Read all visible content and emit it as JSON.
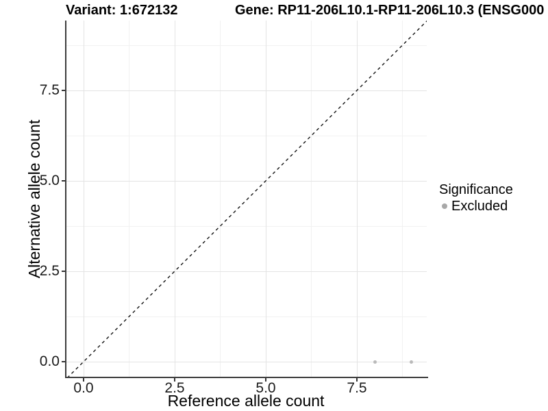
{
  "titles": {
    "variant": "Variant: 1:672132",
    "gene": "Gene: RP11-206L10.1-RP11-206L10.3 (ENSG000"
  },
  "axes": {
    "x": {
      "title": "Reference allele count"
    },
    "y": {
      "title": "Alternative allele count"
    }
  },
  "legend": {
    "title": "Significance",
    "items": [
      {
        "label": "Excluded",
        "color": "#a8a8a8"
      }
    ]
  },
  "chart_data": {
    "type": "scatter",
    "title_left": "Variant: 1:672132",
    "title_right": "Gene: RP11-206L10.1-RP11-206L10.3 (ENSG000",
    "xlabel": "Reference allele count",
    "ylabel": "Alternative allele count",
    "xlim": [
      -0.45,
      9.45
    ],
    "ylim": [
      -0.45,
      9.45
    ],
    "x_ticks": [
      {
        "v": 0,
        "label": "0.0"
      },
      {
        "v": 2.5,
        "label": "2.5"
      },
      {
        "v": 5,
        "label": "5.0"
      },
      {
        "v": 7.5,
        "label": "7.5"
      }
    ],
    "y_ticks": [
      {
        "v": 0,
        "label": "0.0"
      },
      {
        "v": 2.5,
        "label": "2.5"
      },
      {
        "v": 5,
        "label": "5.0"
      },
      {
        "v": 7.5,
        "label": "7.5"
      }
    ],
    "x_minor_ticks": [
      1.25,
      3.75,
      6.25,
      8.75
    ],
    "y_minor_ticks": [
      1.25,
      3.75,
      6.25,
      8.75
    ],
    "grid": "major+minor",
    "legend_position": "right",
    "series": [
      {
        "name": "Excluded",
        "color": "#b9b9b9",
        "marker": "circle",
        "points": [
          {
            "x": 8,
            "y": 0
          },
          {
            "x": 9,
            "y": 0
          }
        ]
      }
    ],
    "reference_line": {
      "kind": "identity",
      "equation": "y = x",
      "style": "dashed",
      "color": "#141414"
    }
  },
  "colors": {
    "grid_major": "#e3e3e3",
    "grid_minor": "#f1f1f1",
    "axis_line": "#3c3c3c",
    "tick_mark": "#333333",
    "tick_label": "#1a1a1a"
  }
}
